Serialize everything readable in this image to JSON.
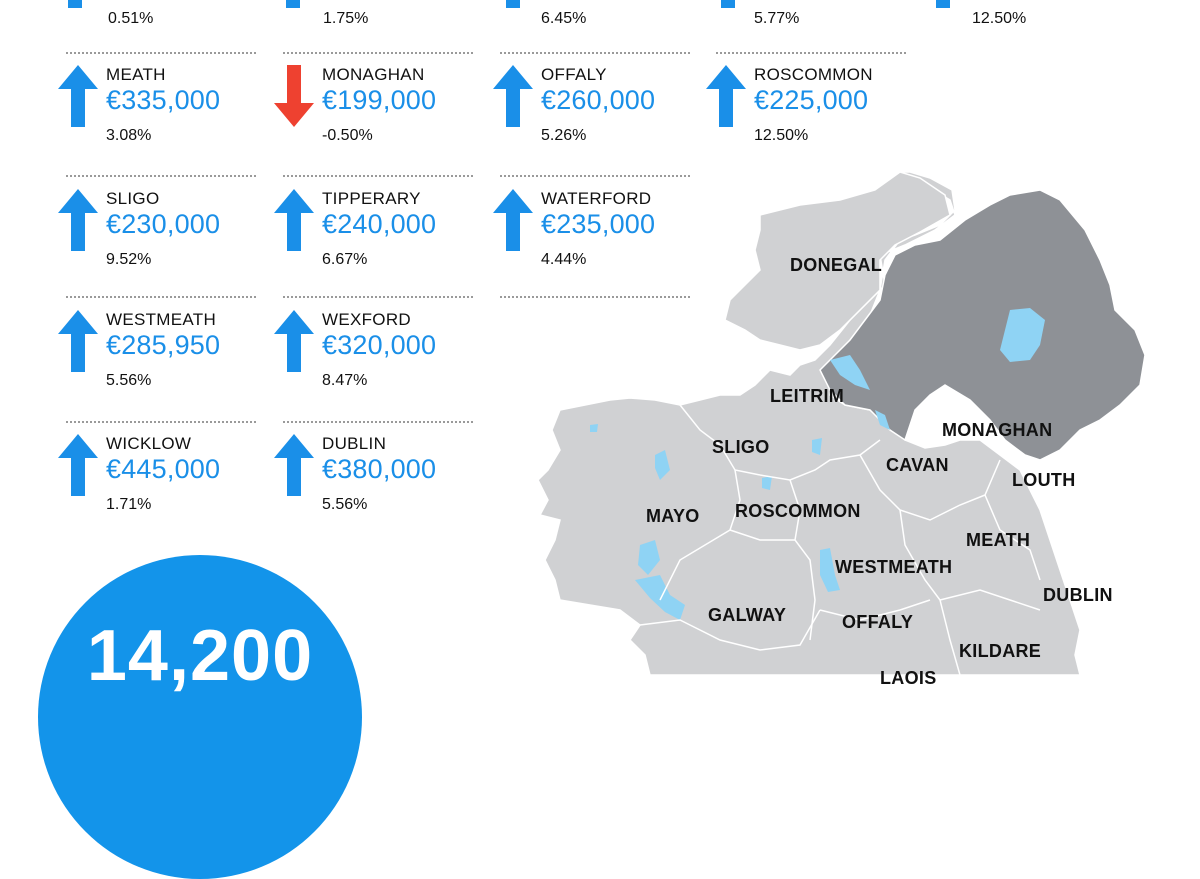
{
  "colors": {
    "up": "#1a8fe8",
    "down": "#ee4130",
    "map_ni": "#8e9196",
    "map_roi": "#d0d1d3",
    "water": "#8fd3f4"
  },
  "top_row": [
    {
      "change": "0.51%",
      "direction": "up"
    },
    {
      "change": "1.75%",
      "direction": "up"
    },
    {
      "change": "6.45%",
      "direction": "up"
    },
    {
      "change": "5.77%",
      "direction": "up"
    },
    {
      "change": "12.50%",
      "direction": "up"
    }
  ],
  "counties": [
    {
      "name": "MEATH",
      "price": "€335,000",
      "change": "3.08%",
      "direction": "up"
    },
    {
      "name": "MONAGHAN",
      "price": "€199,000",
      "change": "-0.50%",
      "direction": "down"
    },
    {
      "name": "OFFALY",
      "price": "€260,000",
      "change": "5.26%",
      "direction": "up"
    },
    {
      "name": "ROSCOMMON",
      "price": "€225,000",
      "change": "12.50%",
      "direction": "up"
    },
    {
      "name": "SLIGO",
      "price": "€230,000",
      "change": "9.52%",
      "direction": "up"
    },
    {
      "name": "TIPPERARY",
      "price": "€240,000",
      "change": "6.67%",
      "direction": "up"
    },
    {
      "name": "WATERFORD",
      "price": "€235,000",
      "change": "4.44%",
      "direction": "up"
    },
    {
      "name": "WESTMEATH",
      "price": "€285,950",
      "change": "5.56%",
      "direction": "up"
    },
    {
      "name": "WEXFORD",
      "price": "€320,000",
      "change": "8.47%",
      "direction": "up"
    },
    {
      "name": "WICKLOW",
      "price": "€445,000",
      "change": "1.71%",
      "direction": "up"
    },
    {
      "name": "DUBLIN",
      "price": "€380,000",
      "change": "5.56%",
      "direction": "up"
    }
  ],
  "big_stat": {
    "value": "14,200"
  },
  "map_labels": {
    "donegal": "DONEGAL",
    "leitrim": "LEITRIM",
    "sligo": "SLIGO",
    "monaghan": "MONAGHAN",
    "cavan": "CAVAN",
    "louth": "LOUTH",
    "mayo": "MAYO",
    "roscommon": "ROSCOMMON",
    "meath": "MEATH",
    "westmeath": "WESTMEATH",
    "dublin": "DUBLIN",
    "galway": "GALWAY",
    "offaly": "OFFALY",
    "kildare": "KILDARE",
    "laois": "LAOIS"
  }
}
